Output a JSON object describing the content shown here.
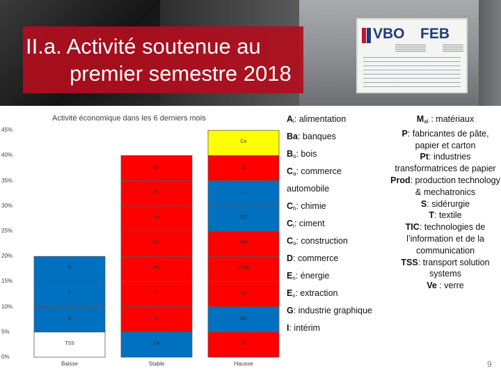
{
  "slide": {
    "title_line1": "II.a. Activité soutenue au",
    "title_line2": "premier semestre 2018",
    "page_number": "9",
    "plaque": {
      "logo_left": "VBO",
      "logo_right": "FEB"
    }
  },
  "colors": {
    "yellow": "#ffff00",
    "red": "#ff0000",
    "blue": "#0070c0",
    "banner_red": "#b00e1e"
  },
  "chart_data": {
    "type": "bar",
    "stacked": true,
    "title": "Activité économique dans les 6 derniers mois",
    "categories": [
      "Baisse",
      "Stable",
      "Hausse"
    ],
    "y_ticks": [
      "0%",
      "5%",
      "10%",
      "15%",
      "20%",
      "25%",
      "30%",
      "35%",
      "40%",
      "45%"
    ],
    "ylim": [
      0,
      45
    ],
    "grid": false,
    "segments": [
      {
        "category": "Baisse",
        "label": "TSS",
        "value": 5,
        "color": "#ffffff"
      },
      {
        "category": "Baisse",
        "label": "G",
        "value": 5,
        "color": "#0070c0"
      },
      {
        "category": "Baisse",
        "label": "T",
        "value": 5,
        "color": "#0070c0"
      },
      {
        "category": "Baisse",
        "label": "D",
        "value": 5,
        "color": "#0070c0"
      },
      {
        "category": "Stable",
        "label": "Ca",
        "value": 5,
        "color": "#0070c0"
      },
      {
        "category": "Stable",
        "label": "Ci",
        "value": 5,
        "color": "#ff0000"
      },
      {
        "category": "Stable",
        "label": "P",
        "value": 5,
        "color": "#ff0000"
      },
      {
        "category": "Stable",
        "label": "Bo",
        "value": 5,
        "color": "#ff0000"
      },
      {
        "category": "Stable",
        "label": "En",
        "value": 5,
        "color": "#ff0000"
      },
      {
        "category": "Stable",
        "label": "Ve",
        "value": 5,
        "color": "#ff0000"
      },
      {
        "category": "Stable",
        "label": "Pt",
        "value": 5,
        "color": "#ff0000"
      },
      {
        "category": "Stable",
        "label": "Ch",
        "value": 5,
        "color": "#ff0000"
      },
      {
        "category": "Hausse",
        "label": "Al",
        "value": 5,
        "color": "#ff0000"
      },
      {
        "category": "Hausse",
        "label": "Ba",
        "value": 5,
        "color": "#0070c0"
      },
      {
        "category": "Hausse",
        "label": "Ex",
        "value": 5,
        "color": "#ff0000"
      },
      {
        "category": "Hausse",
        "label": "Prod",
        "value": 5,
        "color": "#ff0000"
      },
      {
        "category": "Hausse",
        "label": "Mat",
        "value": 5,
        "color": "#ff0000"
      },
      {
        "category": "Hausse",
        "label": "TIC",
        "value": 5,
        "color": "#0070c0"
      },
      {
        "category": "Hausse",
        "label": "I",
        "value": 5,
        "color": "#0070c0"
      },
      {
        "category": "Hausse",
        "label": "S",
        "value": 5,
        "color": "#ff0000"
      },
      {
        "category": "Hausse",
        "label": "Co",
        "value": 5,
        "color": "#ffff00"
      }
    ]
  },
  "legend_left": [
    {
      "abbr": "A",
      "sub": "l",
      "text": ": alimentation"
    },
    {
      "abbr": "Ba",
      "sub": "",
      "text": ": banques"
    },
    {
      "abbr": "B",
      "sub": "o",
      "text": ": bois"
    },
    {
      "abbr": "C",
      "sub": "a",
      "text": ": commerce"
    },
    {
      "abbr": "",
      "sub": "",
      "text": "automobile"
    },
    {
      "abbr": "C",
      "sub": "h",
      "text": ": chimie"
    },
    {
      "abbr": "C",
      "sub": "i",
      "text": ": ciment"
    },
    {
      "abbr": "C",
      "sub": "o",
      "text": ": construction"
    },
    {
      "abbr": "D",
      "sub": "",
      "text": ": commerce"
    },
    {
      "abbr": "E",
      "sub": "n",
      "text": ": énergie"
    },
    {
      "abbr": "E",
      "sub": "x",
      "text": ": extraction"
    },
    {
      "abbr": "G",
      "sub": "",
      "text": ": industrie graphique"
    },
    {
      "abbr": "I",
      "sub": "",
      "text": ": intérim"
    }
  ],
  "legend_right": [
    {
      "abbr": "M",
      "sub": "at",
      "text": " : matériaux"
    },
    {
      "abbr": "P",
      "sub": "",
      "text": ": fabricantes de pâte, papier et carton"
    },
    {
      "abbr": "Pt",
      "sub": "",
      "text": ": industries transformatrices de papier"
    },
    {
      "abbr": "Prod",
      "sub": "",
      "text": ": production technology & mechatronics"
    },
    {
      "abbr": "S",
      "sub": "",
      "text": ": sidérurgie"
    },
    {
      "abbr": "T",
      "sub": "",
      "text": ": textile"
    },
    {
      "abbr": "TIC",
      "sub": "",
      "text": ": technologies de l’information et de la communication"
    },
    {
      "abbr": "TSS",
      "sub": "",
      "text": ": transport solution systems"
    },
    {
      "abbr": "Ve",
      "sub": "",
      "text": " : verre"
    }
  ]
}
